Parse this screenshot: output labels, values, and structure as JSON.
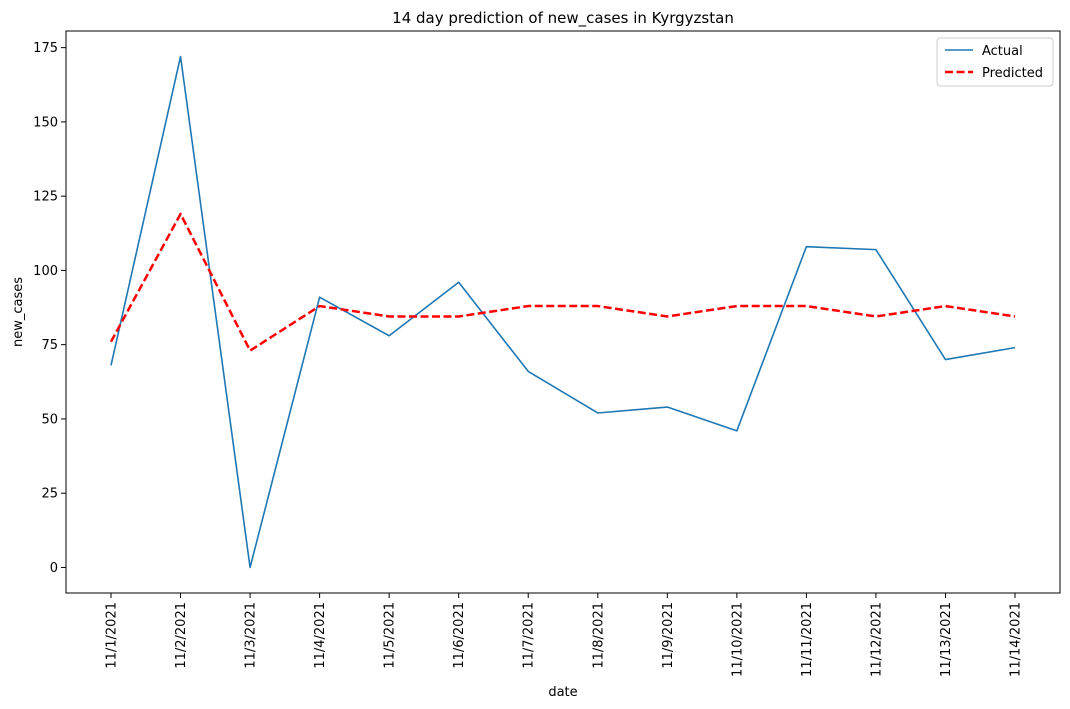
{
  "chart_data": {
    "type": "line",
    "title": "14 day prediction of new_cases in Kyrgyzstan",
    "xlabel": "date",
    "ylabel": "new_cases",
    "categories": [
      "11/1/2021",
      "11/2/2021",
      "11/3/2021",
      "11/4/2021",
      "11/5/2021",
      "11/6/2021",
      "11/7/2021",
      "11/8/2021",
      "11/9/2021",
      "11/10/2021",
      "11/11/2021",
      "11/12/2021",
      "11/13/2021",
      "11/14/2021"
    ],
    "ylim": [
      -8.6,
      180.6
    ],
    "yticks": [
      0,
      25,
      50,
      75,
      100,
      125,
      150,
      175
    ],
    "legend": "top-right",
    "series": [
      {
        "name": "Actual",
        "color": "#1f77b4",
        "style": "solid",
        "values": [
          68,
          172,
          0,
          91,
          78,
          96,
          66,
          52,
          54,
          46,
          108,
          107,
          70,
          74
        ]
      },
      {
        "name": "Predicted",
        "color": "#ff0000",
        "style": "dashed",
        "values": [
          76,
          119,
          73,
          88,
          84.5,
          84.5,
          88,
          88,
          84.5,
          88,
          88,
          84.5,
          88,
          84.5
        ]
      }
    ]
  }
}
